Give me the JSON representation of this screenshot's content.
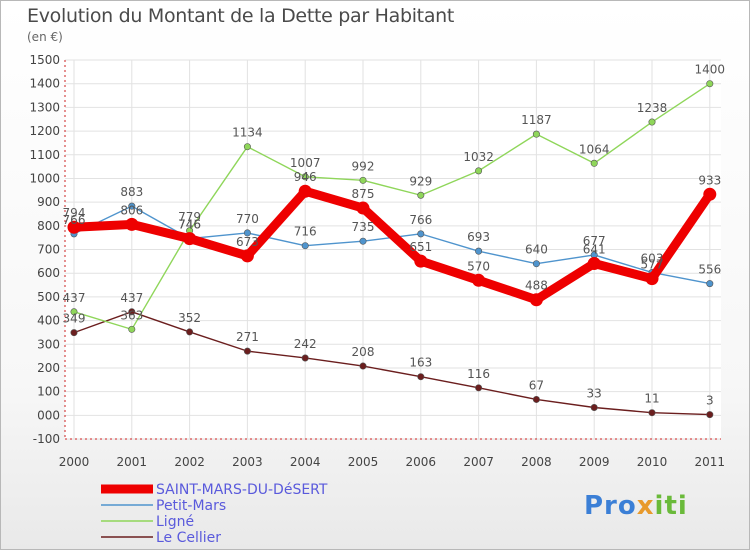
{
  "chart_data": {
    "type": "line",
    "title": "Evolution du Montant de la Dette par Habitant",
    "unit_label": "(en €)",
    "x": [
      "2000",
      "2001",
      "2002",
      "2003",
      "2004",
      "2005",
      "2006",
      "2007",
      "2008",
      "2009",
      "2010",
      "2011"
    ],
    "ylim": [
      -100,
      1500
    ],
    "yticks": [
      -100,
      0,
      100,
      200,
      300,
      400,
      500,
      600,
      700,
      800,
      900,
      1000,
      1100,
      1200,
      1300,
      1400,
      1500
    ],
    "ytick_labels": [
      "-100",
      "000",
      "100",
      "200",
      "300",
      "400",
      "500",
      "600",
      "700",
      "800",
      "900",
      "1000",
      "1100",
      "1200",
      "1300",
      "1400",
      "1500"
    ],
    "grid": true,
    "legend_position": "bottom-left",
    "series": [
      {
        "name": "SAINT-MARS-DU-DéSERT",
        "color": "#ee0000",
        "values": [
          794,
          806,
          746,
          673,
          946,
          875,
          651,
          570,
          488,
          641,
          577,
          933
        ]
      },
      {
        "name": "Petit-Mars",
        "color": "#4f94cd",
        "values": [
          766,
          883,
          746,
          770,
          716,
          735,
          766,
          693,
          640,
          677,
          603,
          556
        ]
      },
      {
        "name": "Ligné",
        "color": "#8fd65a",
        "values": [
          437,
          363,
          779,
          1134,
          1007,
          992,
          929,
          1032,
          1187,
          1064,
          1238,
          1400
        ]
      },
      {
        "name": "Le Cellier",
        "color": "#6b1e1e",
        "values": [
          349,
          437,
          352,
          271,
          242,
          208,
          163,
          116,
          67,
          33,
          11,
          3
        ]
      }
    ]
  },
  "logo": {
    "part1": "Pro",
    "part2": "x",
    "part3": "iti"
  }
}
